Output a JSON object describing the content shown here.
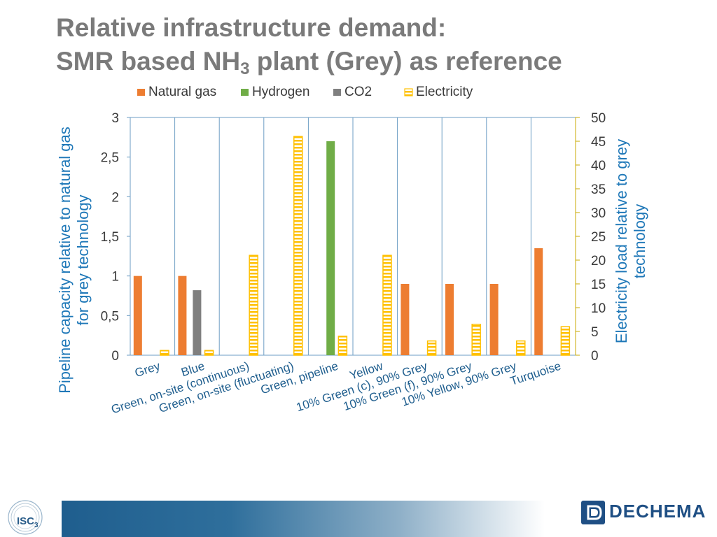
{
  "slide": {
    "title_line1": "Relative infrastructure demand:",
    "title_line2_pre": "SMR based NH",
    "title_line2_sub": "3",
    "title_line2_post": " plant (Grey) as reference"
  },
  "logos": {
    "left_text": "ISC",
    "left_sub": "3",
    "right_text": "DECHEMA"
  },
  "chart_data": {
    "type": "bar",
    "categories": [
      "Grey",
      "Blue",
      "Green, on-site (continuous)",
      "Green, on-site (fluctuating)",
      "Green, pipeline",
      "Yellow",
      "10% Green (c), 90% Grey",
      "10% Green (f), 90% Grey",
      "10% Yellow, 90% Grey",
      "Turquoise"
    ],
    "series": [
      {
        "name": "Natural gas",
        "axis": "left",
        "color": "#ed7d31",
        "style": "solid",
        "values": [
          1.0,
          1.0,
          null,
          null,
          null,
          null,
          0.9,
          0.9,
          0.9,
          1.35
        ]
      },
      {
        "name": "Hydrogen",
        "axis": "left",
        "color": "#70ad47",
        "style": "solid",
        "values": [
          null,
          null,
          null,
          null,
          2.7,
          null,
          null,
          null,
          null,
          null
        ]
      },
      {
        "name": "CO2",
        "axis": "left",
        "color": "#7f7f7f",
        "style": "solid",
        "values": [
          null,
          0.82,
          null,
          null,
          null,
          null,
          null,
          null,
          null,
          null
        ]
      },
      {
        "name": "Electricity",
        "axis": "right",
        "color": "#ffc000",
        "style": "striped",
        "values": [
          1,
          1,
          21,
          46,
          4,
          21,
          3,
          6.5,
          3,
          6
        ]
      }
    ],
    "ylabel": "Pipeline capacity relative to natural gas for grey technology",
    "y2label": "Electricity load relative to grey technology",
    "ylim": [
      0,
      3
    ],
    "y2lim": [
      0,
      50
    ],
    "yticks": [
      "0",
      "0,5",
      "1",
      "1,5",
      "2",
      "2,5",
      "3"
    ],
    "y2ticks": [
      "0",
      "5",
      "10",
      "15",
      "20",
      "25",
      "30",
      "35",
      "40",
      "45",
      "50"
    ],
    "grid": "vertical separators between categories",
    "legend_position": "top"
  }
}
